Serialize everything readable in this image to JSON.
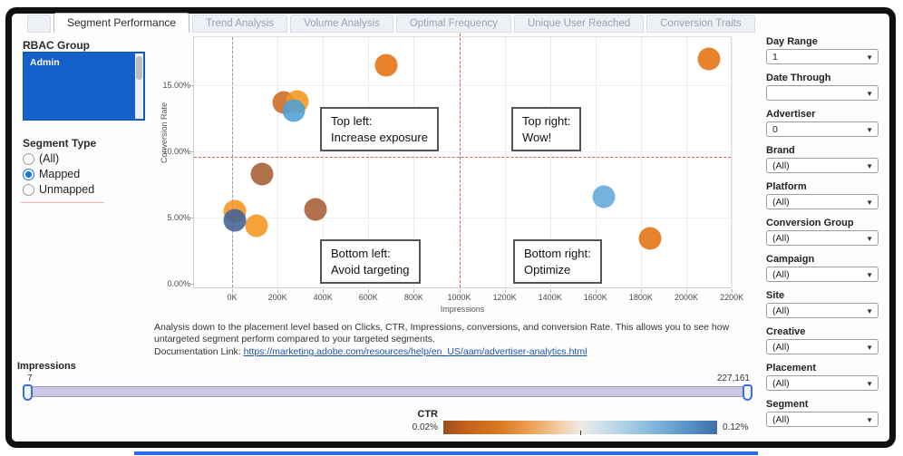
{
  "tabs": [
    {
      "label": "Segment Performance",
      "active": true
    },
    {
      "label": "Trend Analysis",
      "active": false
    },
    {
      "label": "Volume Analysis",
      "active": false
    },
    {
      "label": "Optimal Frequency",
      "active": false
    },
    {
      "label": "Unique User Reached",
      "active": false
    },
    {
      "label": "Conversion Traits",
      "active": false
    }
  ],
  "left_panel": {
    "rbac_title": "RBAC Group",
    "rbac_items": [
      {
        "label": "Admin",
        "selected": true
      }
    ],
    "segment_type_title": "Segment Type",
    "segment_type_options": [
      {
        "label": "(All)",
        "selected": false
      },
      {
        "label": "Mapped",
        "selected": true
      },
      {
        "label": "Unmapped",
        "selected": false
      }
    ]
  },
  "chart_data": {
    "type": "scatter",
    "title": "Segment performance quadrant scatter",
    "xlabel": "Impressions",
    "ylabel": "Conversion Rate",
    "x_ticks": [
      "0K",
      "200K",
      "400K",
      "600K",
      "800K",
      "1000K",
      "1200K",
      "1400K",
      "1600K",
      "1800K",
      "2000K",
      "2200K"
    ],
    "x_tick_step_k": 200,
    "y_ticks": [
      "0.00%",
      "5.00%",
      "10.00%",
      "15.00%"
    ],
    "y_tick_step_pct": 5,
    "xlim_k": [
      -170,
      2255
    ],
    "ylim_pct": [
      0,
      18.6
    ],
    "grid": true,
    "color_encoding": "CTR (0.02% orange to 0.12% blue)",
    "reference_lines": {
      "vertical_gray_k": 0,
      "vertical_red_k": 1000,
      "horizontal_red_pct": 9.6
    },
    "points": [
      {
        "x_k": 132,
        "y_pct": 8.3,
        "color": "#A65C33"
      },
      {
        "x_k": 367,
        "y_pct": 5.6,
        "color": "#A65C33"
      },
      {
        "x_k": 12,
        "y_pct": 5.5,
        "color": "#F5941E"
      },
      {
        "x_k": 108,
        "y_pct": 4.4,
        "color": "#F5941E"
      },
      {
        "x_k": 10,
        "y_pct": 4.8,
        "color": "#41629A"
      },
      {
        "x_k": 228,
        "y_pct": 13.7,
        "color": "#CD691E"
      },
      {
        "x_k": 287,
        "y_pct": 13.8,
        "color": "#F5941E"
      },
      {
        "x_k": 271,
        "y_pct": 13.1,
        "color": "#4D9FD6"
      },
      {
        "x_k": 678,
        "y_pct": 16.5,
        "color": "#E2720F"
      },
      {
        "x_k": 2100,
        "y_pct": 17.0,
        "color": "#E2720F"
      },
      {
        "x_k": 1637,
        "y_pct": 6.6,
        "color": "#62A9DB"
      },
      {
        "x_k": 1840,
        "y_pct": 3.4,
        "color": "#E2720F"
      }
    ],
    "annotations": [
      {
        "line1": "Top left:",
        "line2": "Increase exposure"
      },
      {
        "line1": "Top right:",
        "line2": "Wow!"
      },
      {
        "line1": "Bottom left:",
        "line2": "Avoid targeting"
      },
      {
        "line1": "Bottom right:",
        "line2": "Optimize"
      }
    ]
  },
  "description": {
    "body": "Analysis down to the placement level based on Clicks, CTR, Impressions, conversions, and conversion Rate. This allows you to see how untargeted segment perform compared to your targeted segments.",
    "link_prefix": "Documentation Link: ",
    "link_text": "https://marketing.adobe.com/resources/help/en_US/aam/advertiser-analytics.html"
  },
  "impressions_slider": {
    "label": "Impressions",
    "min": "7",
    "max": "227,161"
  },
  "ctr_legend": {
    "label": "CTR",
    "min": "0.02%",
    "max": "0.12%"
  },
  "filters": [
    {
      "label": "Day Range",
      "value": "1"
    },
    {
      "label": "Date Through",
      "value": ""
    },
    {
      "label": "Advertiser",
      "value": "0"
    },
    {
      "label": "Brand",
      "value": "(All)"
    },
    {
      "label": "Platform",
      "value": "(All)"
    },
    {
      "label": "Conversion Group",
      "value": "(All)"
    },
    {
      "label": "Campaign",
      "value": "(All)"
    },
    {
      "label": "Site",
      "value": "(All)"
    },
    {
      "label": "Creative",
      "value": "(All)"
    },
    {
      "label": "Placement",
      "value": "(All)"
    },
    {
      "label": "Segment",
      "value": "(All)"
    }
  ],
  "colors": {
    "accent_blue": "#1560C8",
    "ref_red": "#E0604F",
    "slider_track": "#C9C6E4",
    "ctr_low": "#9C4F1F",
    "ctr_high": "#3E6FA6"
  }
}
